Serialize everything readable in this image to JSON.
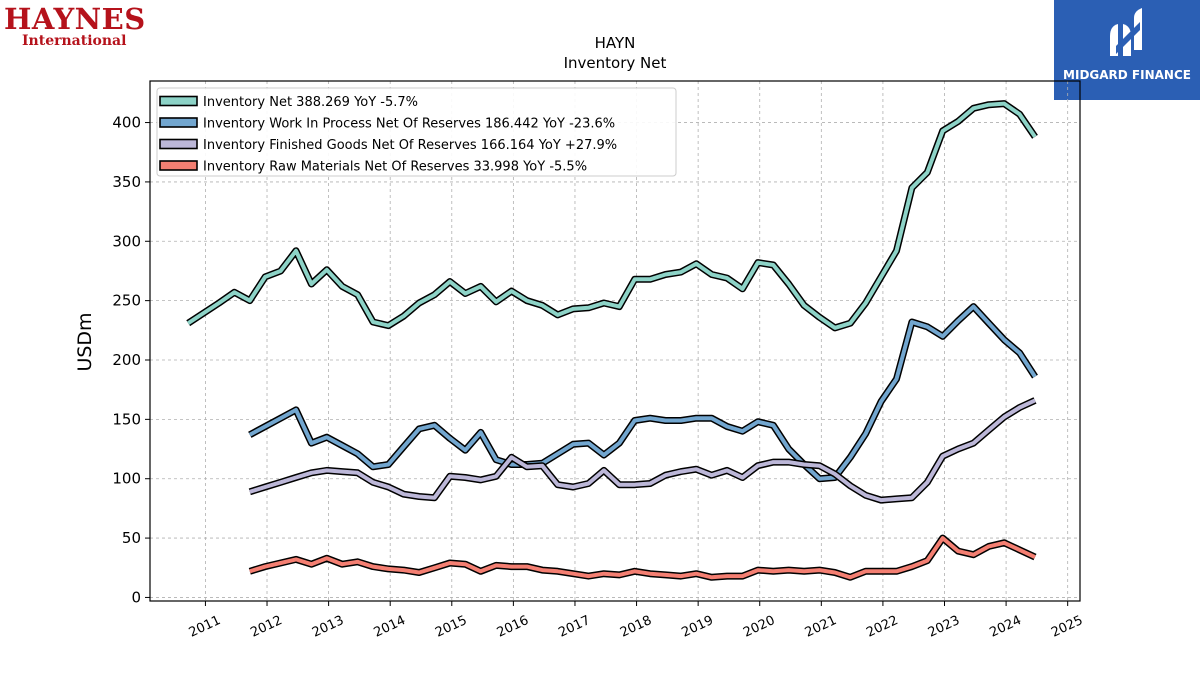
{
  "header": {
    "brand_line1": "HAYNES",
    "brand_line2": "International",
    "partner_logo_text": "MIDGARD FINANCE"
  },
  "colors": {
    "brand_red": "#b5121b",
    "partner_blue": "#2b5fb4"
  },
  "chart_data": {
    "type": "line",
    "title": "HAYN",
    "subtitle": "Inventory Net",
    "xlabel": "",
    "ylabel": "USDm",
    "xlim": [
      2010.1,
      2025.2
    ],
    "ylim": [
      -3,
      435
    ],
    "grid": true,
    "legend_position": "top-left",
    "x_ticks": [
      {
        "v": 2011,
        "label": "2011"
      },
      {
        "v": 2012,
        "label": "2012"
      },
      {
        "v": 2013,
        "label": "2013"
      },
      {
        "v": 2014,
        "label": "2014"
      },
      {
        "v": 2015,
        "label": "2015"
      },
      {
        "v": 2016,
        "label": "2016"
      },
      {
        "v": 2017,
        "label": "2017"
      },
      {
        "v": 2018,
        "label": "2018"
      },
      {
        "v": 2019,
        "label": "2019"
      },
      {
        "v": 2020,
        "label": "2020"
      },
      {
        "v": 2021,
        "label": "2021"
      },
      {
        "v": 2022,
        "label": "2022"
      },
      {
        "v": 2023,
        "label": "2023"
      },
      {
        "v": 2024,
        "label": "2024"
      },
      {
        "v": 2025,
        "label": "2025"
      }
    ],
    "y_ticks": [
      {
        "v": 0,
        "label": "0"
      },
      {
        "v": 50,
        "label": "50"
      },
      {
        "v": 100,
        "label": "100"
      },
      {
        "v": 150,
        "label": "150"
      },
      {
        "v": 200,
        "label": "200"
      },
      {
        "v": 250,
        "label": "250"
      },
      {
        "v": 300,
        "label": "300"
      },
      {
        "v": 350,
        "label": "350"
      },
      {
        "v": 400,
        "label": "400"
      }
    ],
    "series": [
      {
        "name": "Inventory Net",
        "legend_label": "Inventory Net  388.269 YoY -5.7%",
        "color": "#8dd3c7",
        "points": [
          [
            2010.72,
            231
          ],
          [
            2011.22,
            248
          ],
          [
            2011.47,
            257
          ],
          [
            2011.72,
            250
          ],
          [
            2011.97,
            270
          ],
          [
            2012.22,
            275
          ],
          [
            2012.47,
            292
          ],
          [
            2012.72,
            264
          ],
          [
            2012.97,
            276
          ],
          [
            2013.22,
            262
          ],
          [
            2013.47,
            255
          ],
          [
            2013.72,
            232
          ],
          [
            2013.97,
            229
          ],
          [
            2014.22,
            237
          ],
          [
            2014.47,
            248
          ],
          [
            2014.72,
            255
          ],
          [
            2014.97,
            266
          ],
          [
            2015.22,
            256
          ],
          [
            2015.47,
            262
          ],
          [
            2015.72,
            249
          ],
          [
            2015.97,
            258
          ],
          [
            2016.22,
            250
          ],
          [
            2016.47,
            246
          ],
          [
            2016.72,
            238
          ],
          [
            2016.97,
            243
          ],
          [
            2017.22,
            244
          ],
          [
            2017.47,
            248
          ],
          [
            2017.72,
            245
          ],
          [
            2017.97,
            268
          ],
          [
            2018.22,
            268
          ],
          [
            2018.47,
            272
          ],
          [
            2018.72,
            274
          ],
          [
            2018.97,
            281
          ],
          [
            2019.22,
            272
          ],
          [
            2019.47,
            269
          ],
          [
            2019.72,
            260
          ],
          [
            2019.97,
            282
          ],
          [
            2020.22,
            280
          ],
          [
            2020.47,
            264
          ],
          [
            2020.72,
            246
          ],
          [
            2020.97,
            236
          ],
          [
            2021.22,
            227
          ],
          [
            2021.47,
            231
          ],
          [
            2021.72,
            248
          ],
          [
            2021.97,
            270
          ],
          [
            2022.22,
            292
          ],
          [
            2022.47,
            345
          ],
          [
            2022.72,
            358
          ],
          [
            2022.97,
            393
          ],
          [
            2023.22,
            401
          ],
          [
            2023.47,
            412
          ],
          [
            2023.72,
            415
          ],
          [
            2023.97,
            416
          ],
          [
            2024.22,
            407
          ],
          [
            2024.47,
            388
          ]
        ]
      },
      {
        "name": "Inventory Work In Process Net Of Reserves",
        "legend_label": "Inventory Work In Process Net Of Reserves  186.442 YoY -23.6%",
        "color": "#72a6cf",
        "points": [
          [
            2011.72,
            137
          ],
          [
            2011.97,
            144
          ],
          [
            2012.22,
            151
          ],
          [
            2012.47,
            158
          ],
          [
            2012.72,
            130
          ],
          [
            2012.97,
            135
          ],
          [
            2013.22,
            128
          ],
          [
            2013.47,
            121
          ],
          [
            2013.72,
            110
          ],
          [
            2013.97,
            112
          ],
          [
            2014.22,
            127
          ],
          [
            2014.47,
            142
          ],
          [
            2014.72,
            145
          ],
          [
            2014.97,
            134
          ],
          [
            2015.22,
            124
          ],
          [
            2015.47,
            139
          ],
          [
            2015.72,
            116
          ],
          [
            2015.97,
            112
          ],
          [
            2016.22,
            112
          ],
          [
            2016.47,
            113
          ],
          [
            2016.72,
            121
          ],
          [
            2016.97,
            129
          ],
          [
            2017.22,
            130
          ],
          [
            2017.47,
            120
          ],
          [
            2017.72,
            130
          ],
          [
            2017.97,
            149
          ],
          [
            2018.22,
            151
          ],
          [
            2018.47,
            149
          ],
          [
            2018.72,
            149
          ],
          [
            2018.97,
            151
          ],
          [
            2019.22,
            151
          ],
          [
            2019.47,
            144
          ],
          [
            2019.72,
            140
          ],
          [
            2019.97,
            148
          ],
          [
            2020.22,
            145
          ],
          [
            2020.47,
            125
          ],
          [
            2020.72,
            112
          ],
          [
            2020.97,
            100
          ],
          [
            2021.22,
            101
          ],
          [
            2021.47,
            118
          ],
          [
            2021.72,
            138
          ],
          [
            2021.97,
            165
          ],
          [
            2022.22,
            184
          ],
          [
            2022.47,
            232
          ],
          [
            2022.72,
            228
          ],
          [
            2022.97,
            220
          ],
          [
            2023.22,
            233
          ],
          [
            2023.47,
            245
          ],
          [
            2023.72,
            231
          ],
          [
            2023.97,
            217
          ],
          [
            2024.22,
            206
          ],
          [
            2024.47,
            186
          ]
        ]
      },
      {
        "name": "Inventory Finished Goods Net Of Reserves",
        "legend_label": "Inventory Finished Goods Net Of Reserves  166.164 YoY +27.9%",
        "color": "#bcb7d8",
        "points": [
          [
            2011.72,
            89
          ],
          [
            2011.97,
            93
          ],
          [
            2012.22,
            97
          ],
          [
            2012.47,
            101
          ],
          [
            2012.72,
            105
          ],
          [
            2012.97,
            107
          ],
          [
            2013.22,
            106
          ],
          [
            2013.47,
            105
          ],
          [
            2013.72,
            97
          ],
          [
            2013.97,
            93
          ],
          [
            2014.22,
            87
          ],
          [
            2014.47,
            85
          ],
          [
            2014.72,
            84
          ],
          [
            2014.97,
            102
          ],
          [
            2015.22,
            101
          ],
          [
            2015.47,
            99
          ],
          [
            2015.72,
            102
          ],
          [
            2015.97,
            118
          ],
          [
            2016.22,
            110
          ],
          [
            2016.47,
            111
          ],
          [
            2016.72,
            95
          ],
          [
            2016.97,
            93
          ],
          [
            2017.22,
            96
          ],
          [
            2017.47,
            107
          ],
          [
            2017.72,
            95
          ],
          [
            2017.97,
            95
          ],
          [
            2018.22,
            96
          ],
          [
            2018.47,
            103
          ],
          [
            2018.72,
            106
          ],
          [
            2018.97,
            108
          ],
          [
            2019.22,
            103
          ],
          [
            2019.47,
            107
          ],
          [
            2019.72,
            101
          ],
          [
            2019.97,
            111
          ],
          [
            2020.22,
            114
          ],
          [
            2020.47,
            114
          ],
          [
            2020.72,
            112
          ],
          [
            2020.97,
            111
          ],
          [
            2021.22,
            104
          ],
          [
            2021.47,
            94
          ],
          [
            2021.72,
            86
          ],
          [
            2021.97,
            82
          ],
          [
            2022.22,
            83
          ],
          [
            2022.47,
            84
          ],
          [
            2022.72,
            97
          ],
          [
            2022.97,
            119
          ],
          [
            2023.22,
            125
          ],
          [
            2023.47,
            130
          ],
          [
            2023.72,
            141
          ],
          [
            2023.97,
            152
          ],
          [
            2024.22,
            160
          ],
          [
            2024.47,
            166
          ]
        ]
      },
      {
        "name": "Inventory Raw Materials Net Of Reserves",
        "legend_label": "Inventory Raw Materials Net Of Reserves  33.998 YoY -5.5%",
        "color": "#f47f72",
        "points": [
          [
            2011.72,
            22
          ],
          [
            2011.97,
            26
          ],
          [
            2012.22,
            29
          ],
          [
            2012.47,
            32
          ],
          [
            2012.72,
            28
          ],
          [
            2012.97,
            33
          ],
          [
            2013.22,
            28
          ],
          [
            2013.47,
            30
          ],
          [
            2013.72,
            26
          ],
          [
            2013.97,
            24
          ],
          [
            2014.22,
            23
          ],
          [
            2014.47,
            21
          ],
          [
            2014.72,
            25
          ],
          [
            2014.97,
            29
          ],
          [
            2015.22,
            28
          ],
          [
            2015.47,
            22
          ],
          [
            2015.72,
            27
          ],
          [
            2015.97,
            26
          ],
          [
            2016.22,
            26
          ],
          [
            2016.47,
            23
          ],
          [
            2016.72,
            22
          ],
          [
            2016.97,
            20
          ],
          [
            2017.22,
            18
          ],
          [
            2017.47,
            20
          ],
          [
            2017.72,
            19
          ],
          [
            2017.97,
            22
          ],
          [
            2018.22,
            20
          ],
          [
            2018.47,
            19
          ],
          [
            2018.72,
            18
          ],
          [
            2018.97,
            20
          ],
          [
            2019.22,
            17
          ],
          [
            2019.47,
            18
          ],
          [
            2019.72,
            18
          ],
          [
            2019.97,
            23
          ],
          [
            2020.22,
            22
          ],
          [
            2020.47,
            23
          ],
          [
            2020.72,
            22
          ],
          [
            2020.97,
            23
          ],
          [
            2021.22,
            21
          ],
          [
            2021.47,
            17
          ],
          [
            2021.72,
            22
          ],
          [
            2021.97,
            22
          ],
          [
            2022.22,
            22
          ],
          [
            2022.47,
            26
          ],
          [
            2022.72,
            31
          ],
          [
            2022.97,
            50
          ],
          [
            2023.22,
            39
          ],
          [
            2023.47,
            36
          ],
          [
            2023.72,
            43
          ],
          [
            2023.97,
            46
          ],
          [
            2024.22,
            40
          ],
          [
            2024.47,
            34
          ]
        ]
      }
    ]
  }
}
